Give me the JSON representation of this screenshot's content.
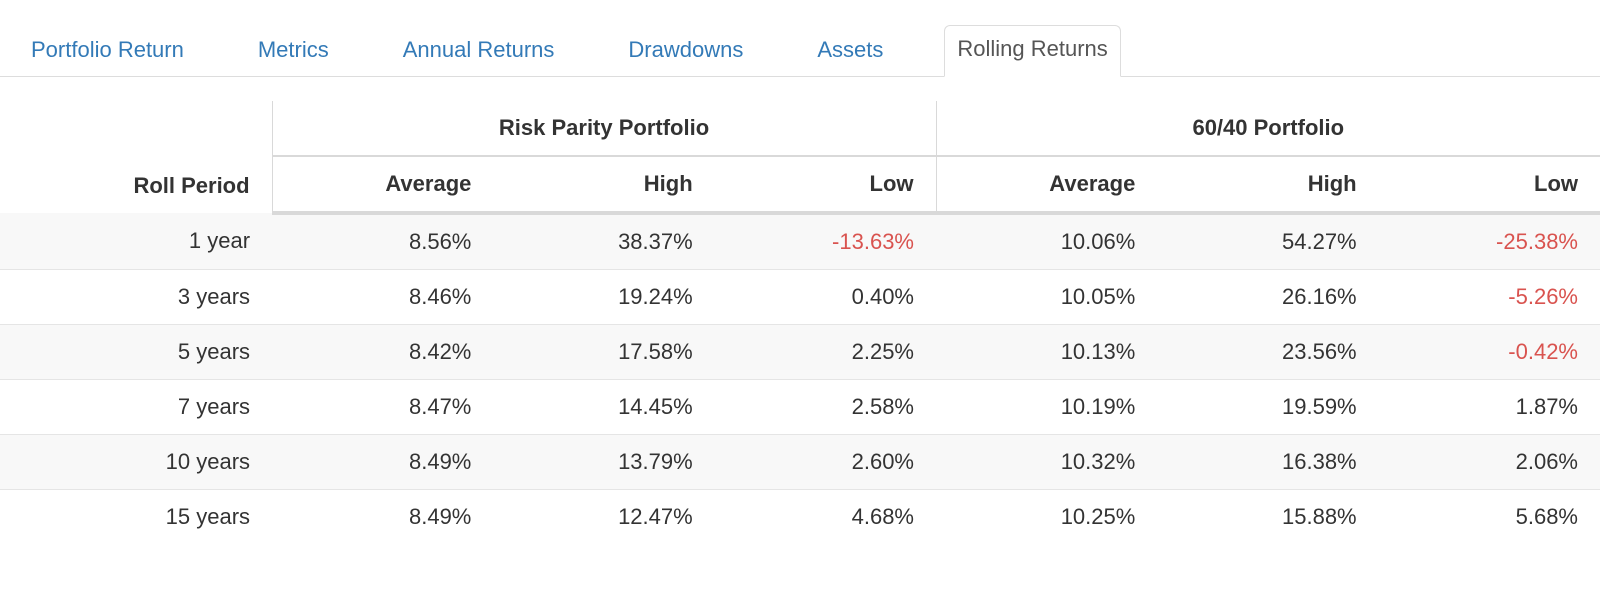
{
  "tabs": [
    {
      "label": "Portfolio Return",
      "active": false
    },
    {
      "label": "Metrics",
      "active": false
    },
    {
      "label": "Annual Returns",
      "active": false
    },
    {
      "label": "Drawdowns",
      "active": false
    },
    {
      "label": "Assets",
      "active": false
    },
    {
      "label": "Rolling Returns",
      "active": true
    }
  ],
  "table": {
    "roll_header": "Roll Period",
    "portfolios": [
      {
        "name": "Risk Parity Portfolio",
        "stats": [
          "Average",
          "High",
          "Low"
        ]
      },
      {
        "name": "60/40 Portfolio",
        "stats": [
          "Average",
          "High",
          "Low"
        ]
      }
    ],
    "rows": [
      {
        "period": "1 year",
        "cells": [
          {
            "v": "8.56%",
            "neg": false
          },
          {
            "v": "38.37%",
            "neg": false
          },
          {
            "v": "-13.63%",
            "neg": true
          },
          {
            "v": "10.06%",
            "neg": false
          },
          {
            "v": "54.27%",
            "neg": false
          },
          {
            "v": "-25.38%",
            "neg": true
          }
        ]
      },
      {
        "period": "3 years",
        "cells": [
          {
            "v": "8.46%",
            "neg": false
          },
          {
            "v": "19.24%",
            "neg": false
          },
          {
            "v": "0.40%",
            "neg": false
          },
          {
            "v": "10.05%",
            "neg": false
          },
          {
            "v": "26.16%",
            "neg": false
          },
          {
            "v": "-5.26%",
            "neg": true
          }
        ]
      },
      {
        "period": "5 years",
        "cells": [
          {
            "v": "8.42%",
            "neg": false
          },
          {
            "v": "17.58%",
            "neg": false
          },
          {
            "v": "2.25%",
            "neg": false
          },
          {
            "v": "10.13%",
            "neg": false
          },
          {
            "v": "23.56%",
            "neg": false
          },
          {
            "v": "-0.42%",
            "neg": true
          }
        ]
      },
      {
        "period": "7 years",
        "cells": [
          {
            "v": "8.47%",
            "neg": false
          },
          {
            "v": "14.45%",
            "neg": false
          },
          {
            "v": "2.58%",
            "neg": false
          },
          {
            "v": "10.19%",
            "neg": false
          },
          {
            "v": "19.59%",
            "neg": false
          },
          {
            "v": "1.87%",
            "neg": false
          }
        ]
      },
      {
        "period": "10 years",
        "cells": [
          {
            "v": "8.49%",
            "neg": false
          },
          {
            "v": "13.79%",
            "neg": false
          },
          {
            "v": "2.60%",
            "neg": false
          },
          {
            "v": "10.32%",
            "neg": false
          },
          {
            "v": "16.38%",
            "neg": false
          },
          {
            "v": "2.06%",
            "neg": false
          }
        ]
      },
      {
        "period": "15 years",
        "cells": [
          {
            "v": "8.49%",
            "neg": false
          },
          {
            "v": "12.47%",
            "neg": false
          },
          {
            "v": "4.68%",
            "neg": false
          },
          {
            "v": "10.25%",
            "neg": false
          },
          {
            "v": "15.88%",
            "neg": false
          },
          {
            "v": "5.68%",
            "neg": false
          }
        ]
      }
    ],
    "colors": {
      "link": "#337ab7",
      "negative": "#d9534f",
      "stripe": "#f8f8f8",
      "border": "#d9d9d9"
    }
  }
}
